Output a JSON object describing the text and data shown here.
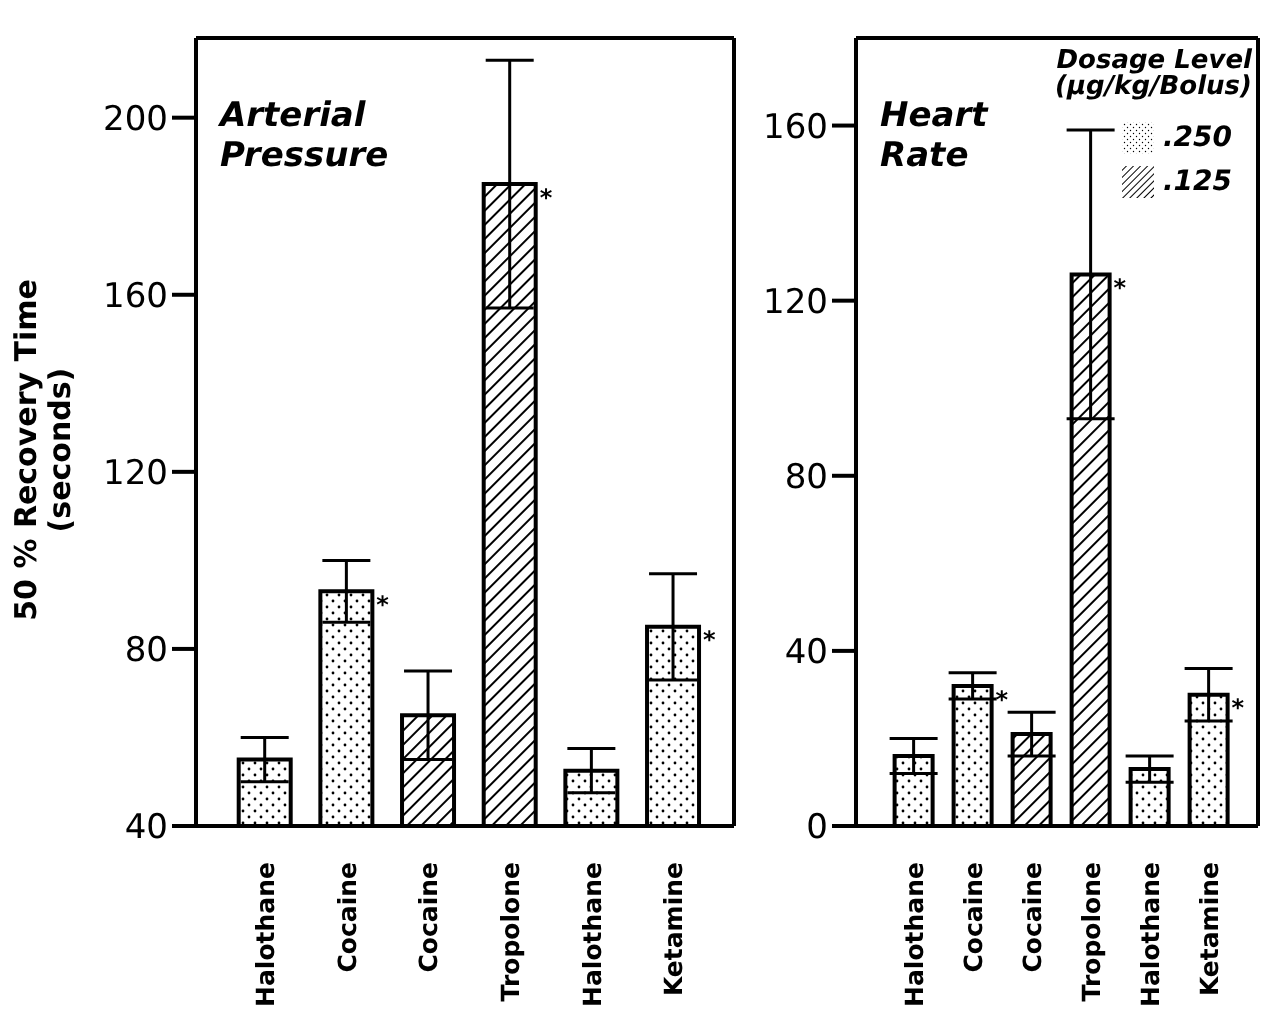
{
  "chart_data": [
    {
      "type": "bar",
      "title": "Arterial Pressure",
      "ylabel": "50 % Recovery Time (seconds)",
      "categories": [
        "Halothane",
        "Cocaine",
        "Cocaine",
        "Tropolone",
        "Halothane",
        "Ketamine"
      ],
      "stacked": true,
      "ylim": [
        40,
        218
      ],
      "yticks": [
        40,
        80,
        120,
        160,
        200
      ],
      "legend": false,
      "series": [
        {
          "color": "#000000",
          "values": [
            55,
            93,
            null,
            null,
            52.5,
            85
          ],
          "errors": [
            5,
            7,
            null,
            null,
            5,
            12
          ],
          "value_labels": [
            null,
            "*",
            null,
            null,
            null,
            "*"
          ]
        },
        {
          "color": "#000000",
          "values": [
            null,
            null,
            65,
            185,
            null,
            null
          ],
          "errors": [
            null,
            null,
            10,
            28,
            null,
            null
          ],
          "value_labels": [
            null,
            null,
            null,
            "*",
            null,
            null
          ]
        }
      ]
    },
    {
      "type": "bar",
      "title": "Heart Rate",
      "legend_title": "Dosage Level (µg/kg/Bolus)",
      "categories": [
        "Halothane",
        "Cocaine",
        "Cocaine",
        "Tropolone",
        "Halothane",
        "Ketamine"
      ],
      "stacked": true,
      "ylim": [
        0,
        180
      ],
      "yticks": [
        0,
        40,
        80,
        120,
        160
      ],
      "legend": "top right",
      "series": [
        {
          "name": ".250",
          "color": "#000000",
          "values": [
            16,
            32,
            null,
            null,
            13,
            30
          ],
          "errors": [
            4,
            3,
            null,
            null,
            3,
            6
          ],
          "value_labels": [
            null,
            "*",
            null,
            null,
            null,
            "*"
          ]
        },
        {
          "name": ".125",
          "color": "#000000",
          "values": [
            null,
            null,
            21,
            126,
            null,
            null
          ],
          "errors": [
            null,
            null,
            5,
            33,
            null,
            null
          ],
          "value_labels": [
            null,
            null,
            null,
            "*",
            null,
            null
          ]
        }
      ]
    }
  ]
}
